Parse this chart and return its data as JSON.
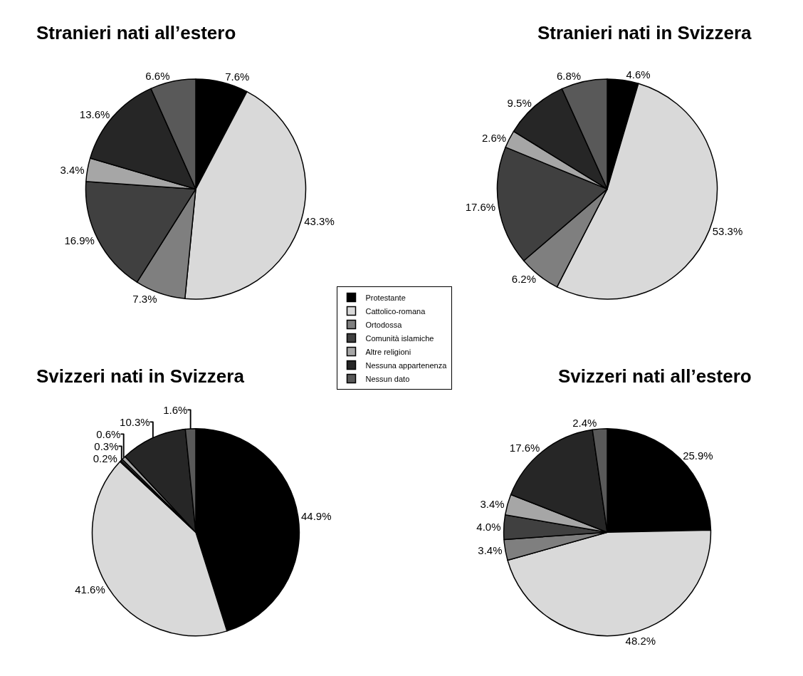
{
  "chart_data": [
    {
      "type": "pie",
      "title": "Stranieri nati all’estero",
      "legend": "bottom right",
      "categories": [
        "Protestante",
        "Cattolico-romana",
        "Ortodossa",
        "Comunità islamiche",
        "Altre religioni",
        "Nessuna appartenenza",
        "Nessun dato"
      ],
      "values": [
        7.6,
        43.3,
        7.3,
        16.9,
        3.4,
        13.6,
        6.6
      ],
      "value_labels": [
        "7.6%",
        "43.3%",
        "7.3%",
        "16.9%",
        "3.4%",
        "13.6%",
        "6.6%"
      ],
      "colors": [
        "#000000",
        "#d9d9d9",
        "#7f7f7f",
        "#404040",
        "#a6a6a6",
        "#262626",
        "#595959"
      ]
    },
    {
      "type": "pie",
      "title": "Stranieri nati in Svizzera",
      "categories": [
        null,
        null,
        null,
        null,
        null,
        null,
        null
      ],
      "values": [
        4.6,
        53.3,
        6.2,
        17.6,
        2.6,
        9.5,
        6.8
      ],
      "value_labels": [
        "4.6%",
        "53.3%",
        "6.2%",
        "17.6%",
        "2.6%",
        "9.5%",
        "6.8%"
      ],
      "colors": [
        "#000000",
        "#d9d9d9",
        "#7f7f7f",
        "#404040",
        "#a6a6a6",
        "#262626",
        "#595959"
      ]
    },
    {
      "type": "pie",
      "title": "Svizzeri nati in Svizzera",
      "categories": [
        null,
        null,
        null,
        null,
        null,
        null,
        null
      ],
      "values": [
        44.9,
        41.6,
        0.2,
        0.3,
        0.6,
        10.3,
        1.6
      ],
      "value_labels": [
        "44.9%",
        "41.6%",
        "0.2%",
        "0.3%",
        "0.6%",
        "10.3%",
        "1.6%"
      ],
      "colors": [
        "#000000",
        "#d9d9d9",
        "#7f7f7f",
        "#404040",
        "#a6a6a6",
        "#262626",
        "#595959"
      ]
    },
    {
      "type": "pie",
      "title": "Svizzeri nati all’estero",
      "categories": [
        null,
        null,
        null,
        null,
        null,
        null,
        null
      ],
      "values": [
        25.9,
        48.2,
        3.4,
        4.0,
        3.4,
        17.6,
        2.4
      ],
      "value_labels": [
        "25.9%",
        "48.2%",
        "3.4%",
        "4.0%",
        "3.4%",
        "17.6%",
        "2.4%"
      ],
      "colors": [
        "#000000",
        "#d9d9d9",
        "#7f7f7f",
        "#404040",
        "#a6a6a6",
        "#262626",
        "#595959"
      ]
    }
  ]
}
